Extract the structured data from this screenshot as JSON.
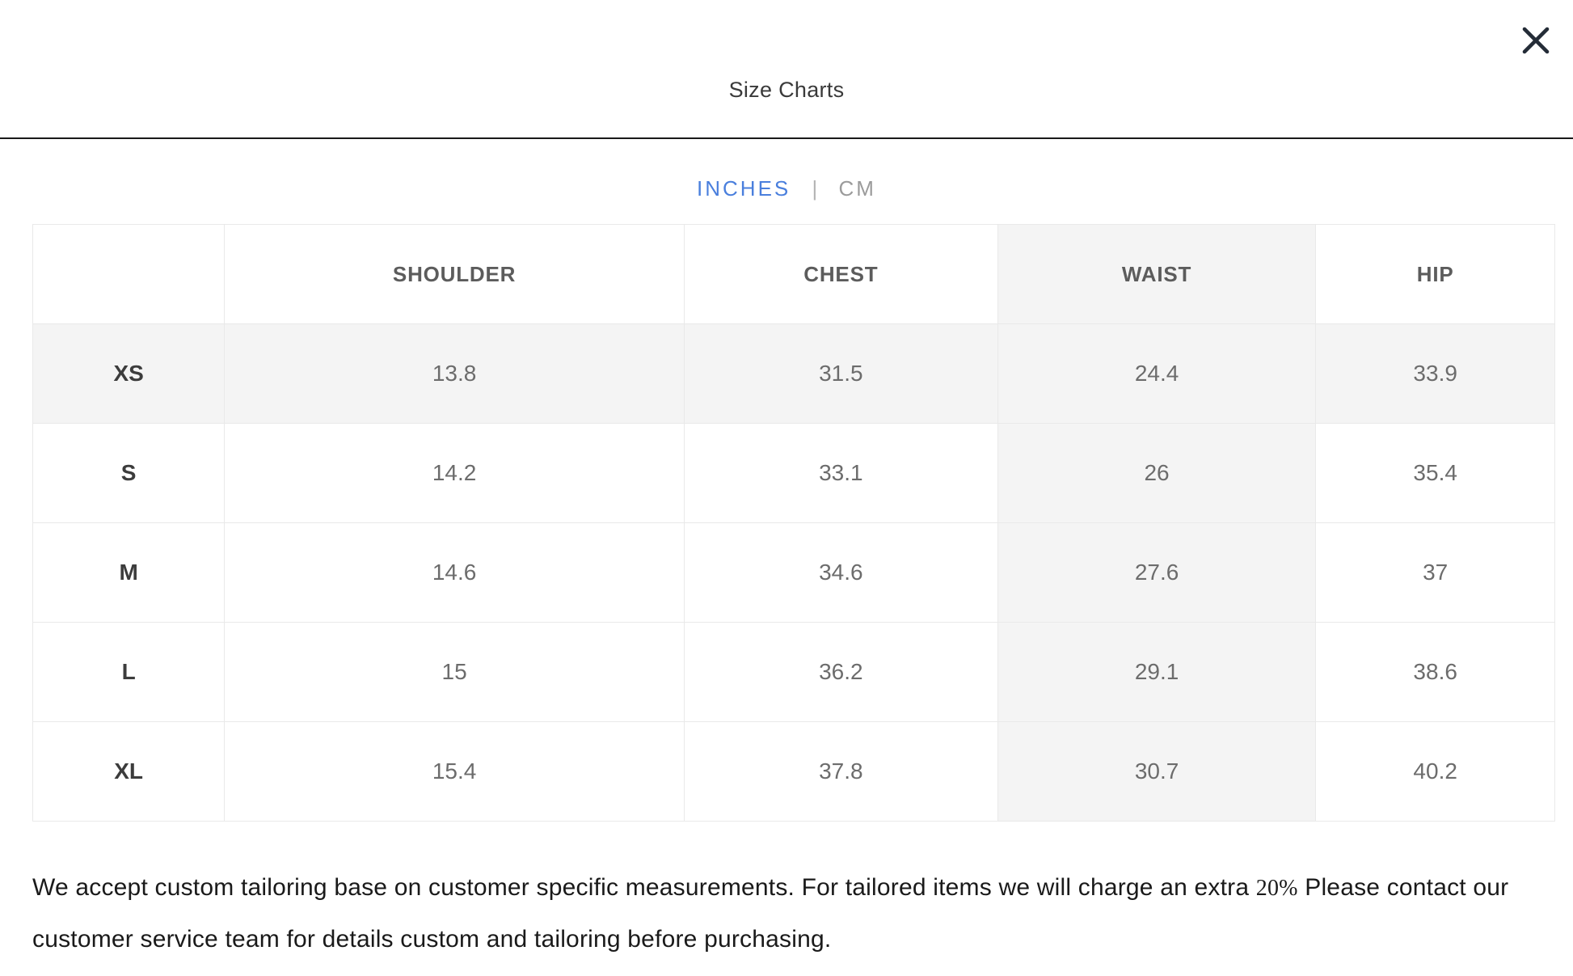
{
  "modal": {
    "title": "Size Charts"
  },
  "unit_toggle": {
    "inches_label": "INCHES",
    "separator": "|",
    "cm_label": "CM",
    "selected_unit": "INCHES"
  },
  "table": {
    "headers": [
      "",
      "SHOULDER",
      "CHEST",
      "WAIST",
      "HIP"
    ],
    "rows": [
      {
        "size": "XS",
        "values": [
          "13.8",
          "31.5",
          "24.4",
          "33.9"
        ]
      },
      {
        "size": "S",
        "values": [
          "14.2",
          "33.1",
          "26",
          "35.4"
        ]
      },
      {
        "size": "M",
        "values": [
          "14.6",
          "34.6",
          "27.6",
          "37"
        ]
      },
      {
        "size": "L",
        "values": [
          "15",
          "36.2",
          "29.1",
          "38.6"
        ]
      },
      {
        "size": "XL",
        "values": [
          "15.4",
          "37.8",
          "30.7",
          "40.2"
        ]
      }
    ],
    "highlighted_column": "WAIST",
    "highlighted_row": "XS",
    "column_widths_pct": [
      12.6,
      30.2,
      20.6,
      20.9,
      15.7
    ]
  },
  "footer": {
    "text_before_percent": "We accept custom tailoring base on customer specific measurements. For tailored items we will charge an extra",
    "percent": "20%",
    "text_after_percent": "Please contact our customer service team for details custom and tailoring before purchasing."
  },
  "colors": {
    "accent_blue": "#4A7FDD",
    "inactive_gray": "#9B9B9B",
    "highlight_bg": "#F4F4F4",
    "table_border": "#E9E9E9",
    "header_divider": "#1A1A1A",
    "close_icon": "#242C37"
  }
}
